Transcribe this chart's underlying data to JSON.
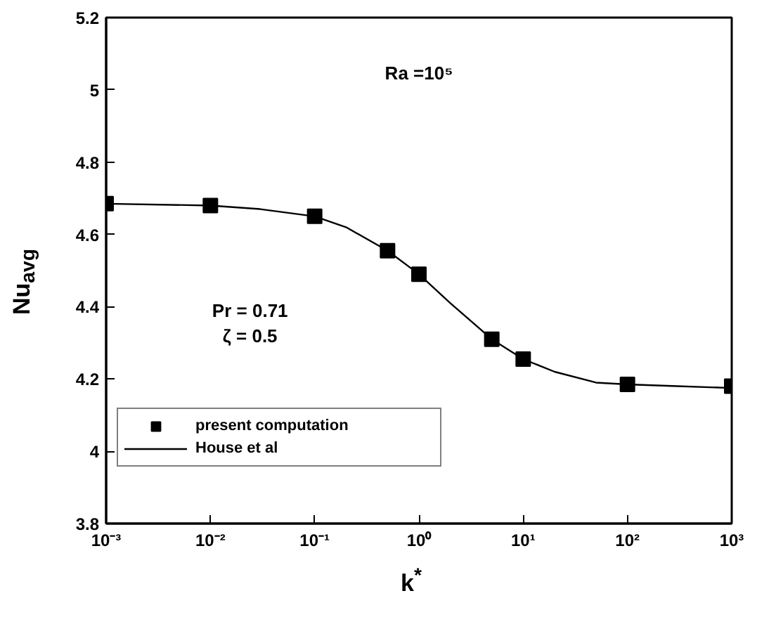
{
  "chart_data": {
    "type": "scatter",
    "xlabel": "k$^{*}$",
    "ylabel": "Nu$_{avg}$",
    "log": "x",
    "xlim": [
      0.001,
      1000
    ],
    "ylim": [
      3.8,
      5.2
    ],
    "xticks": [
      {
        "value": 0.001,
        "label": "10⁻³"
      },
      {
        "value": 0.01,
        "label": "10⁻²"
      },
      {
        "value": 0.1,
        "label": "10⁻¹"
      },
      {
        "value": 1,
        "label": "10⁰"
      },
      {
        "value": 10,
        "label": "10¹"
      },
      {
        "value": 100,
        "label": "10²"
      },
      {
        "value": 1000,
        "label": "10³"
      }
    ],
    "yticks": [
      3.8,
      4,
      4.2,
      4.4,
      4.6,
      4.8,
      5,
      5.2
    ],
    "annotations": [
      "Ra =10⁵",
      "Pr = 0.71",
      "ζ = 0.5"
    ],
    "legend": "bottom left",
    "grid": false,
    "series": [
      {
        "name": "present computation",
        "marker": "square",
        "color": "#000000",
        "x": [
          0.001,
          0.01,
          0.1,
          0.5,
          1,
          5,
          10,
          100,
          1000
        ],
        "values": [
          4.685,
          4.68,
          4.65,
          4.555,
          4.49,
          4.31,
          4.255,
          4.185,
          4.18
        ]
      },
      {
        "name": "House et al",
        "type": "line",
        "line_style": "solid",
        "color": "#000000",
        "x": [
          0.001,
          0.01,
          0.03,
          0.1,
          0.2,
          0.5,
          1,
          2,
          5,
          10,
          20,
          50,
          100,
          300,
          1000
        ],
        "values": [
          4.685,
          4.68,
          4.67,
          4.65,
          4.62,
          4.555,
          4.49,
          4.41,
          4.31,
          4.255,
          4.22,
          4.19,
          4.185,
          4.18,
          4.175
        ]
      }
    ]
  }
}
